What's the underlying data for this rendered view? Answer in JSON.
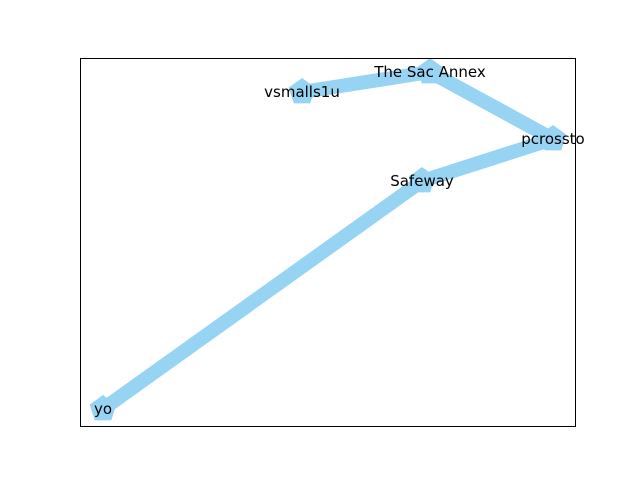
{
  "diagram": {
    "type": "network-graph",
    "edge_color": "#97d3f3",
    "node_color": "#97d3f3",
    "node_shape": "pentagon",
    "nodes": [
      {
        "id": "vsmalls1u",
        "label": "vsmalls1u"
      },
      {
        "id": "the-sac-annex",
        "label": "The Sac Annex"
      },
      {
        "id": "pcrossto",
        "label": "pcrossto"
      },
      {
        "id": "safeway",
        "label": "Safeway"
      },
      {
        "id": "yo",
        "label": "yo"
      }
    ],
    "edges": [
      {
        "source": "vsmalls1u",
        "target": "the-sac-annex"
      },
      {
        "source": "the-sac-annex",
        "target": "pcrossto"
      },
      {
        "source": "pcrossto",
        "target": "safeway"
      },
      {
        "source": "safeway",
        "target": "yo"
      }
    ]
  }
}
